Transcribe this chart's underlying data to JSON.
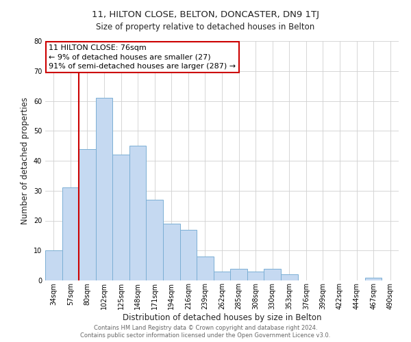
{
  "title_line1": "11, HILTON CLOSE, BELTON, DONCASTER, DN9 1TJ",
  "title_line2": "Size of property relative to detached houses in Belton",
  "xlabel": "Distribution of detached houses by size in Belton",
  "ylabel": "Number of detached properties",
  "footer_line1": "Contains HM Land Registry data © Crown copyright and database right 2024.",
  "footer_line2": "Contains public sector information licensed under the Open Government Licence v3.0.",
  "bar_labels": [
    "34sqm",
    "57sqm",
    "80sqm",
    "102sqm",
    "125sqm",
    "148sqm",
    "171sqm",
    "194sqm",
    "216sqm",
    "239sqm",
    "262sqm",
    "285sqm",
    "308sqm",
    "330sqm",
    "353sqm",
    "376sqm",
    "399sqm",
    "422sqm",
    "444sqm",
    "467sqm",
    "490sqm"
  ],
  "bar_values": [
    10,
    31,
    44,
    61,
    42,
    45,
    27,
    19,
    17,
    8,
    3,
    4,
    3,
    4,
    2,
    0,
    0,
    0,
    0,
    1,
    0
  ],
  "bar_color": "#c5d9f1",
  "bar_edge_color": "#7bafd4",
  "annotation_line1": "11 HILTON CLOSE: 76sqm",
  "annotation_line2": "← 9% of detached houses are smaller (27)",
  "annotation_line3": "91% of semi-detached houses are larger (287) →",
  "annotation_box_edge_color": "#cc0000",
  "vline_color": "#cc0000",
  "vline_position": 1.5,
  "ylim": [
    0,
    80
  ],
  "yticks": [
    0,
    10,
    20,
    30,
    40,
    50,
    60,
    70,
    80
  ],
  "background_color": "#ffffff",
  "grid_color": "#d0d0d0",
  "title1_fontsize": 9.5,
  "title2_fontsize": 8.5,
  "xlabel_fontsize": 8.5,
  "ylabel_fontsize": 8.5,
  "tick_fontsize": 7,
  "footer_fontsize": 6,
  "annotation_fontsize": 8
}
